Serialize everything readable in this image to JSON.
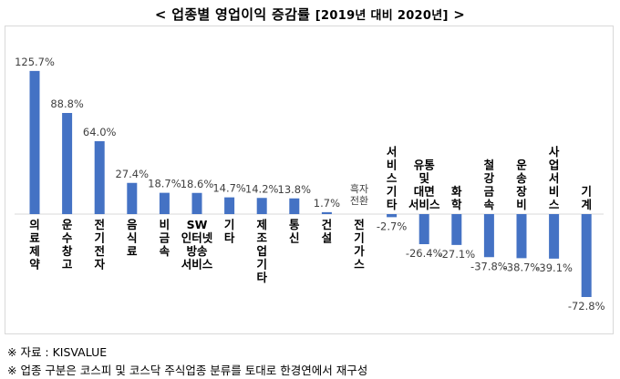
{
  "header": {
    "title_main": "< 업종별 영업이익 증감률",
    "title_sub": "[2019년 대비 2020년]",
    "title_end": ">"
  },
  "footnotes": {
    "source": "※ 자료 : KISVALUE",
    "note": "※ 업종 구분은 코스피 및 코스닥 주식업종 분류를 토대로 한경연에서 재구성"
  },
  "colors": {
    "bar": "#4472c4"
  },
  "chart_data": {
    "type": "bar",
    "title": "업종별 영업이익 증감률 [2019년 대비 2020년]",
    "xlabel": "",
    "ylabel": "",
    "grid": false,
    "ylim": [
      -80,
      130
    ],
    "categories": [
      {
        "lines": [
          "의",
          "료",
          "제",
          "약"
        ]
      },
      {
        "lines": [
          "운",
          "수",
          "창",
          "고"
        ]
      },
      {
        "lines": [
          "전",
          "기",
          "전",
          "자"
        ]
      },
      {
        "lines": [
          "음",
          "식",
          "료"
        ]
      },
      {
        "lines": [
          "비",
          "금",
          "속"
        ]
      },
      {
        "lines": [
          "SW",
          "인터넷",
          "방송",
          "서비스"
        ]
      },
      {
        "lines": [
          "기",
          "타"
        ]
      },
      {
        "lines": [
          "제",
          "조",
          "업",
          "기",
          "타"
        ]
      },
      {
        "lines": [
          "통",
          "신"
        ]
      },
      {
        "lines": [
          "건",
          "설"
        ]
      },
      {
        "lines": [
          "전",
          "기",
          "가",
          "스"
        ]
      },
      {
        "lines": [
          "서",
          "비",
          "스",
          "기",
          "타"
        ]
      },
      {
        "lines": [
          "유통",
          "및",
          "대면",
          "서비스"
        ]
      },
      {
        "lines": [
          "화",
          "학"
        ]
      },
      {
        "lines": [
          "철",
          "강",
          "금",
          "속"
        ]
      },
      {
        "lines": [
          "운",
          "송",
          "장",
          "비"
        ]
      },
      {
        "lines": [
          "사",
          "업",
          "서",
          "비",
          "스"
        ]
      },
      {
        "lines": [
          "기",
          "계"
        ]
      }
    ],
    "values": [
      125.7,
      88.8,
      64.0,
      27.4,
      18.7,
      18.6,
      14.7,
      14.2,
      13.8,
      1.7,
      null,
      -2.7,
      -26.4,
      -27.1,
      -37.8,
      -38.7,
      -39.1,
      -72.8
    ],
    "value_labels": [
      "125.7%",
      "88.8%",
      "64.0%",
      "27.4%",
      "18.7%",
      "18.6%",
      "14.7%",
      "14.2%",
      "13.8%",
      "1.7%",
      "흑자\n전환",
      "-2.7%",
      "-26.4%",
      "-27.1%",
      "-37.8%",
      "-38.7%",
      "-39.1%",
      "-72.8%"
    ]
  }
}
